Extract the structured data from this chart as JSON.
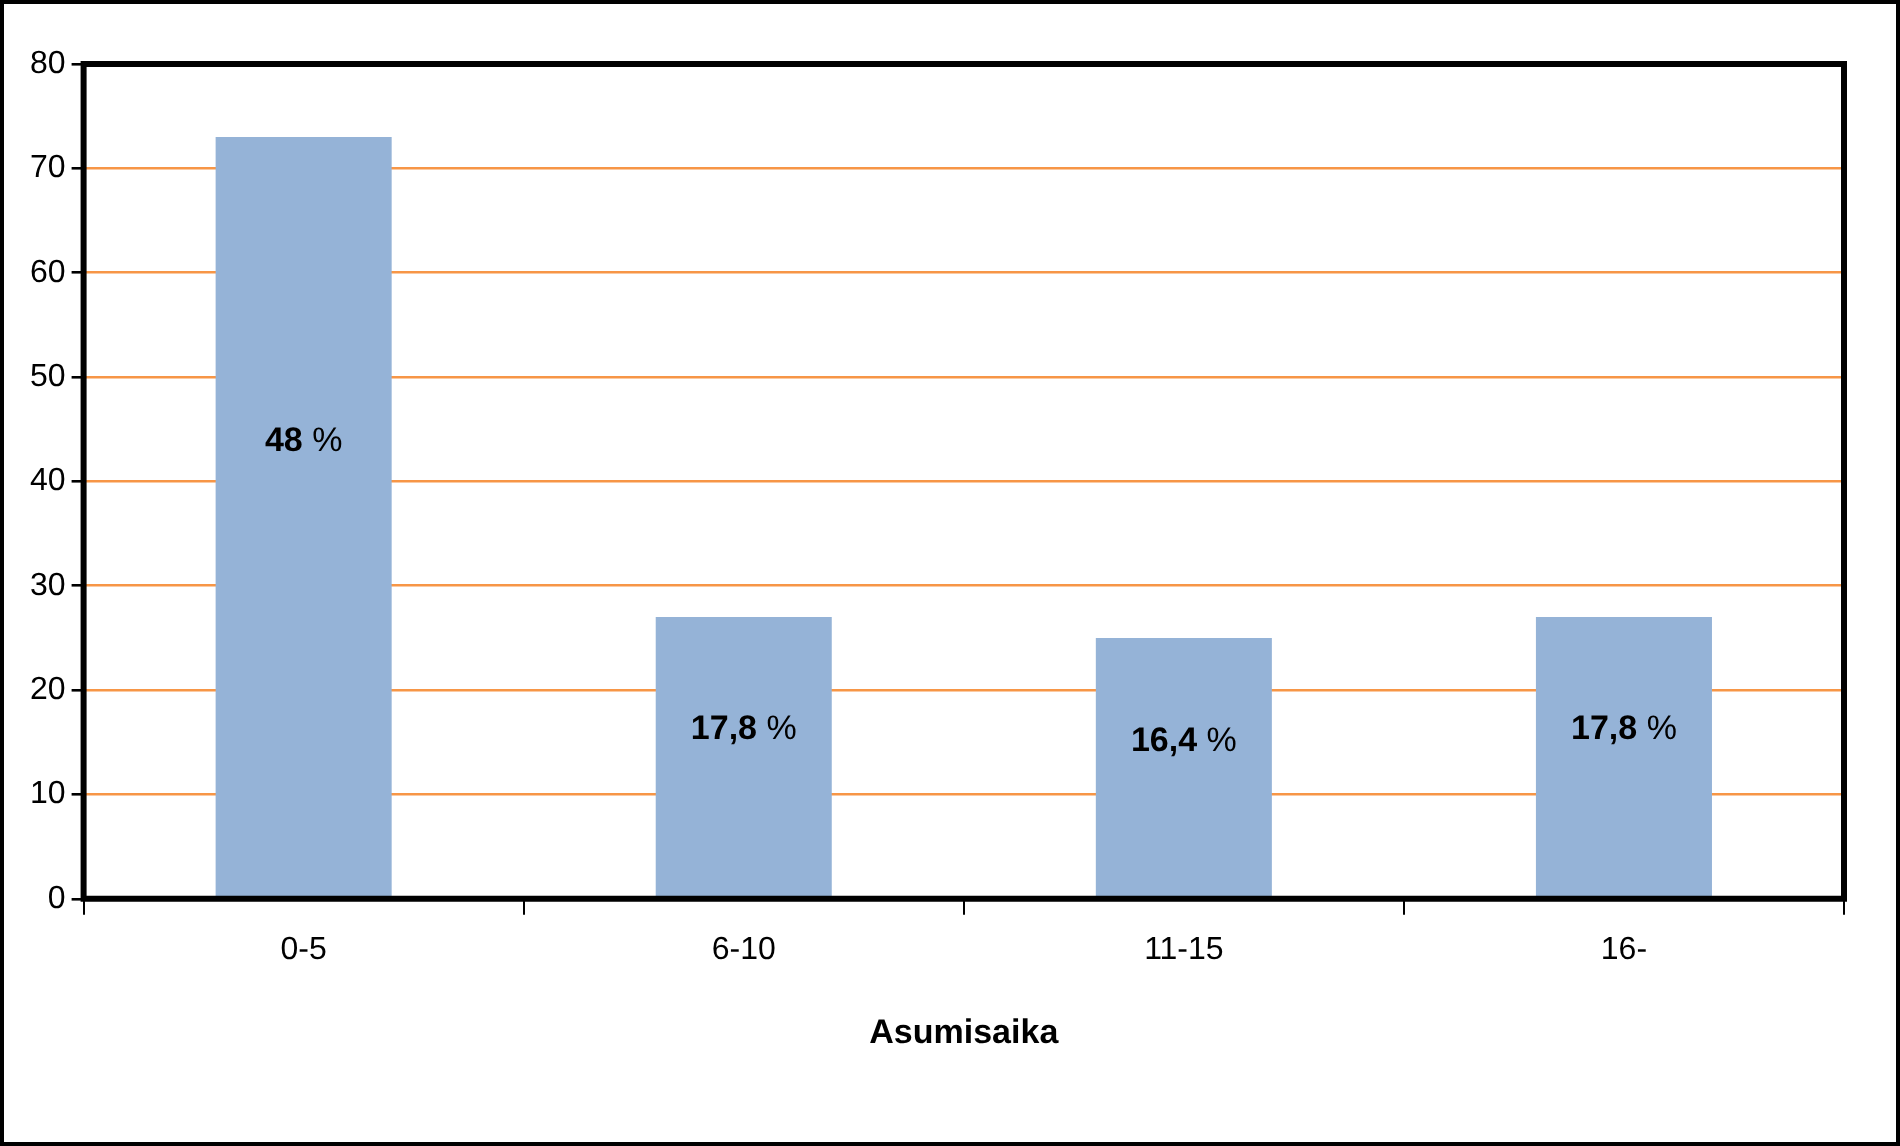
{
  "chart_data": {
    "type": "bar",
    "xlabel": "Asumisaika",
    "categories": [
      "0-5",
      "6-10",
      "11-15",
      "16-"
    ],
    "values": [
      73,
      27,
      25,
      27
    ],
    "annotations": [
      "48 %",
      "17,8 %",
      "16,4 %",
      "17,8 %"
    ],
    "color": "#95b3d7",
    "ylim": [
      0,
      80
    ],
    "yticks": [
      0,
      10,
      20,
      30,
      40,
      50,
      60,
      70,
      80
    ],
    "grid": "y",
    "legend": false
  }
}
